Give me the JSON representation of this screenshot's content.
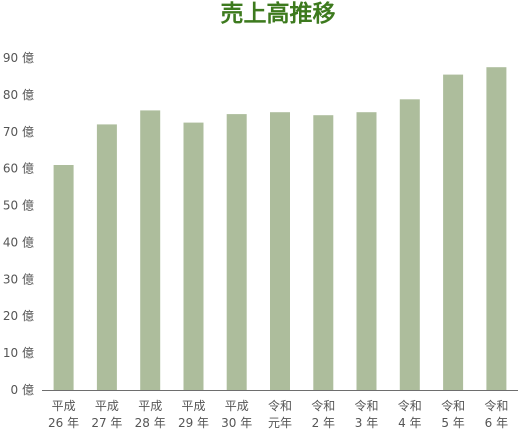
{
  "chart_data": {
    "type": "bar",
    "title": "売上高推移",
    "xlabel": "",
    "ylabel": "",
    "ylim": [
      0,
      90
    ],
    "grid": false,
    "y_ticks": [
      {
        "value": 0,
        "label": "0 億"
      },
      {
        "value": 10,
        "label": "10 億"
      },
      {
        "value": 20,
        "label": "20 億"
      },
      {
        "value": 30,
        "label": "30 億"
      },
      {
        "value": 40,
        "label": "40 億"
      },
      {
        "value": 50,
        "label": "50 億"
      },
      {
        "value": 60,
        "label": "60 億"
      },
      {
        "value": 70,
        "label": "70 億"
      },
      {
        "value": 80,
        "label": "80 億"
      },
      {
        "value": 90,
        "label": "90 億"
      }
    ],
    "categories": [
      {
        "line1": "平成",
        "line2": "26 年"
      },
      {
        "line1": "平成",
        "line2": "27 年"
      },
      {
        "line1": "平成",
        "line2": "28 年"
      },
      {
        "line1": "平成",
        "line2": "29 年"
      },
      {
        "line1": "平成",
        "line2": "30 年"
      },
      {
        "line1": "令和",
        "line2": "元年"
      },
      {
        "line1": "令和",
        "line2": "2 年"
      },
      {
        "line1": "令和",
        "line2": "3 年"
      },
      {
        "line1": "令和",
        "line2": "4 年"
      },
      {
        "line1": "令和",
        "line2": "5 年"
      },
      {
        "line1": "令和",
        "line2": "6 年"
      }
    ],
    "values": [
      61,
      72,
      75.8,
      72.5,
      74.8,
      75.3,
      74.5,
      75.3,
      78.8,
      85.5,
      87.5
    ],
    "colors": {
      "bar": "#adbd9c",
      "title": "#3d7a1e",
      "axis": "#6e6e6e",
      "text": "#555555"
    }
  }
}
